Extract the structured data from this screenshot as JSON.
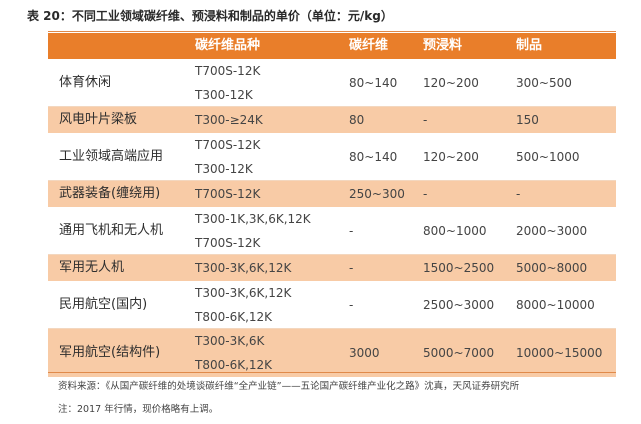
{
  "title": "表 20：不同工业领域碳纤维、预浸料和制品的单价（单位：元/kg）",
  "headers": [
    "",
    "碳纤维品种",
    "碳纤维",
    "预浸料",
    "制品"
  ],
  "rows": [
    {
      "field": "体育休闲",
      "varieties": [
        "T700S-12K",
        "T300-12K"
      ],
      "fiber": "80~140",
      "prepreg": "120~200",
      "product": "300~500"
    },
    {
      "field": "风电叶片梁板",
      "varieties": [
        "T300-≥24K"
      ],
      "fiber": "80",
      "prepreg": "-",
      "product": "150"
    },
    {
      "field": "工业领域高端应用",
      "varieties": [
        "T700S-12K",
        "T300-12K"
      ],
      "fiber": "80~140",
      "prepreg": "120~200",
      "product": "500~1000"
    },
    {
      "field": "武器装备(缠绕用)",
      "varieties": [
        "T700S-12K"
      ],
      "fiber": "250~300",
      "prepreg": "-",
      "product": "-"
    },
    {
      "field": "通用飞机和无人机",
      "varieties": [
        "T300-1K,3K,6K,12K",
        "T700S-12K"
      ],
      "fiber": "-",
      "prepreg": "800~1000",
      "product": "2000~3000"
    },
    {
      "field": "军用无人机",
      "varieties": [
        "T300-3K,6K,12K"
      ],
      "fiber": "-",
      "prepreg": "1500~2500",
      "product": "5000~8000"
    },
    {
      "field": "民用航空(国内)",
      "varieties": [
        "T300-3K,6K,12K",
        "T800-6K,12K"
      ],
      "fiber": "-",
      "prepreg": "2500~3000",
      "product": "8000~10000"
    },
    {
      "field": "军用航空(结构件)",
      "varieties": [
        "T300-3K,6K",
        "T800-6K,12K"
      ],
      "fiber": "3000",
      "prepreg": "5000~7000",
      "product": "10000~15000"
    }
  ],
  "source": "资料来源：《从国产碳纤维的处境谈碳纤维“全产业链”——五论国产碳纤维产业化之路》沈真，天风证券研究所",
  "note": "注：2017 年行情，现价格略有上调。",
  "colors": {
    "header_bg": "#e97e2a",
    "alt_row_bg": "#f8cba6"
  }
}
